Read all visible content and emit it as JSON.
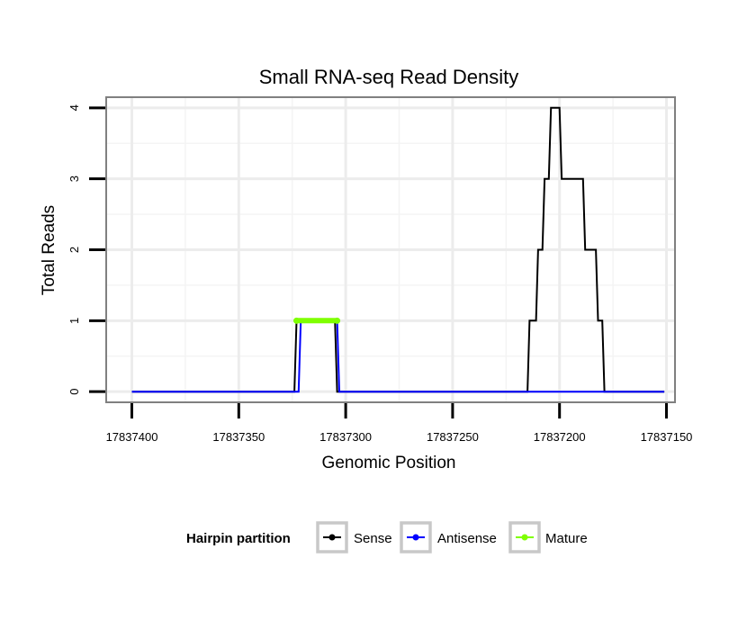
{
  "chart_data": {
    "type": "line",
    "title": "Small RNA-seq Read Density",
    "xlabel": "Genomic Position",
    "ylabel": "Total Reads",
    "x_reversed": true,
    "xlim": [
      17837412,
      17837146
    ],
    "ylim": [
      -0.15,
      4.15
    ],
    "x_ticks": [
      17837400,
      17837350,
      17837300,
      17837250,
      17837200,
      17837150
    ],
    "x_tick_labels": [
      "17837400",
      "17837350",
      "17837300",
      "17837250",
      "17837200",
      "17837150"
    ],
    "y_ticks": [
      0,
      1,
      2,
      3,
      4
    ],
    "y_tick_labels": [
      "0",
      "1",
      "2",
      "3",
      "4"
    ],
    "grid": true,
    "series": [
      {
        "name": "Sense",
        "color": "#000000",
        "x": [
          17837400,
          17837324,
          17837323,
          17837305,
          17837304,
          17837215,
          17837214,
          17837211,
          17837210,
          17837208,
          17837207,
          17837205,
          17837204,
          17837200,
          17837199,
          17837189,
          17837188,
          17837183,
          17837182,
          17837180,
          17837179,
          17837151
        ],
        "y": [
          0,
          0,
          1,
          1,
          0,
          0,
          1,
          1,
          2,
          2,
          3,
          3,
          4,
          4,
          3,
          3,
          2,
          2,
          1,
          1,
          0,
          0
        ]
      },
      {
        "name": "Antisense",
        "color": "#0000ff",
        "x": [
          17837400,
          17837322,
          17837321,
          17837304,
          17837303,
          17837151
        ],
        "y": [
          0,
          0,
          1,
          1,
          0,
          0
        ]
      },
      {
        "name": "Mature",
        "color": "#7fff00",
        "x": [
          17837323,
          17837304
        ],
        "y": [
          1,
          1
        ]
      }
    ],
    "legend": {
      "title": "Hairpin partition",
      "placement": "bottom",
      "items": [
        "Sense",
        "Antisense",
        "Mature"
      ]
    }
  }
}
